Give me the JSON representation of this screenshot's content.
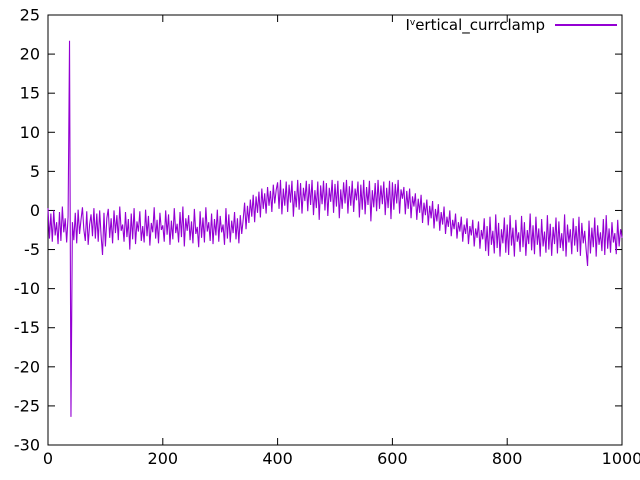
{
  "window": {
    "background": "#ffffff",
    "border_color": "#000000"
  },
  "legend": {
    "prefix": "I",
    "superscript": "v",
    "rest": "ertical_currclamp",
    "sample_color": "#9400d3"
  },
  "chart_data": {
    "type": "line",
    "title": "",
    "xlabel": "",
    "ylabel": "",
    "xlim": [
      0,
      1000
    ],
    "ylim": [
      -30,
      25
    ],
    "xticks": [
      0,
      200,
      400,
      600,
      800,
      1000
    ],
    "yticks": [
      25,
      20,
      15,
      10,
      5,
      0,
      -5,
      -10,
      -15,
      -20,
      -25,
      -30
    ],
    "grid": false,
    "legend_position": "top-right-inside",
    "axis_color": "#000000",
    "series": [
      {
        "name": "Vertical_currclamp",
        "color": "#9400d3",
        "x_start": 0,
        "x_step": 2.5,
        "values": [
          0.3,
          -3.6,
          -0.4,
          -4.0,
          0.0,
          -3.2,
          -1.5,
          -4.3,
          -0.2,
          -3.9,
          0.5,
          -2.8,
          -1.0,
          -4.1,
          -0.8,
          21.7,
          -26.4,
          -1.5,
          -3.8,
          -0.3,
          -4.2,
          0.1,
          -3.0,
          -1.2,
          0.4,
          -2.5,
          -3.9,
          -0.1,
          -4.4,
          -1.8,
          -0.5,
          -3.3,
          0.3,
          -3.6,
          -0.4,
          -4.0,
          0.0,
          -3.2,
          -5.7,
          -0.3,
          -4.6,
          -1.0,
          0.2,
          -3.5,
          -1.0,
          -4.2,
          0.0,
          -2.9,
          -0.6,
          -3.8,
          0.5,
          -2.6,
          -1.8,
          -4.0,
          -0.2,
          -3.4,
          -1.1,
          -5.0,
          -0.4,
          -3.7,
          0.3,
          -4.3,
          -1.4,
          -2.7,
          -0.1,
          -3.9,
          -2.0,
          -4.1,
          0.1,
          -3.3,
          -0.7,
          -4.5,
          -1.6,
          -2.8,
          0.4,
          -3.6,
          -1.2,
          -4.2,
          -0.3,
          -2.5,
          -1.9,
          -4.0,
          0.0,
          -3.1,
          -0.5,
          -4.4,
          -1.3,
          -3.7,
          0.3,
          -2.9,
          -1.7,
          -4.1,
          -0.2,
          -3.4,
          0.5,
          -4.6,
          -1.0,
          -2.6,
          -0.6,
          -3.8,
          -1.4,
          -4.2,
          0.2,
          -3.0,
          -2.1,
          -4.7,
          -0.1,
          -3.5,
          -0.9,
          -4.1,
          0.4,
          -2.7,
          -1.5,
          -3.9,
          -0.4,
          -4.3,
          -1.1,
          -3.2,
          0.1,
          -4.0,
          -0.7,
          -2.8,
          -1.8,
          -4.4,
          0.3,
          -3.6,
          -0.5,
          -4.1,
          -1.3,
          -2.9,
          -0.2,
          -3.7,
          -1.0,
          -4.2,
          -0.6,
          -3.0,
          -1.2,
          1.0,
          -2.4,
          0.6,
          -1.6,
          1.4,
          -0.8,
          2.0,
          -1.5,
          1.8,
          -0.3,
          2.4,
          -0.9,
          2.8,
          0.2,
          2.2,
          -0.4,
          3.0,
          0.6,
          2.5,
          -0.2,
          3.3,
          0.9,
          2.6,
          3.6,
          0.2,
          3.9,
          -0.5,
          2.8,
          0.6,
          3.7,
          -0.2,
          3.3,
          1.0,
          3.8,
          -0.8,
          2.5,
          0.4,
          3.9,
          0.1,
          3.5,
          -0.4,
          2.9,
          1.2,
          3.8,
          -0.1,
          3.4,
          0.7,
          3.9,
          -0.6,
          2.6,
          0.3,
          3.7,
          -1.2,
          3.2,
          0.8,
          3.8,
          0.0,
          3.5,
          -0.7,
          2.9,
          1.1,
          3.9,
          -0.3,
          3.4,
          0.5,
          3.8,
          -1.0,
          2.7,
          0.2,
          3.6,
          0.9,
          3.9,
          -0.4,
          3.1,
          0.6,
          3.8,
          -0.2,
          2.8,
          1.3,
          3.7,
          -0.9,
          3.3,
          0.1,
          3.9,
          -0.5,
          3.0,
          0.7,
          3.8,
          -1.4,
          2.6,
          0.4,
          3.5,
          -0.1,
          3.9,
          0.2,
          3.2,
          0.8,
          3.7,
          -0.6,
          2.9,
          0.3,
          3.8,
          -1.1,
          3.6,
          0.1,
          3.4,
          0.9,
          3.9,
          -0.4,
          2.7,
          1.5,
          3.0,
          -0.5,
          2.5,
          0.2,
          2.8,
          -1.0,
          1.8,
          0.5,
          2.2,
          -1.2,
          1.5,
          -0.3,
          2.0,
          -1.6,
          1.0,
          -0.6,
          1.4,
          -1.9,
          0.6,
          -1.0,
          1.2,
          -2.3,
          0.2,
          -1.4,
          0.8,
          -2.6,
          -0.2,
          -1.8,
          0.5,
          -3.0,
          -0.8,
          -2.1,
          0.0,
          -3.3,
          -1.2,
          -2.4,
          -0.4,
          -3.6,
          -1.5,
          -2.7,
          -0.8,
          -4.0,
          -1.8,
          -3.0,
          -1.0,
          -4.3,
          -2.0,
          -3.2,
          -1.2,
          -4.6,
          -2.3,
          -3.5,
          -1.4,
          -4.9,
          -2.5,
          -3.7,
          -1.0,
          -5.2,
          -2.0,
          -5.8,
          -0.8,
          -4.4,
          -2.6,
          -5.5,
          -0.5,
          -4.8,
          -1.6,
          -5.9,
          -2.4,
          -4.2,
          -0.9,
          -5.4,
          -1.8,
          -5.7,
          -0.6,
          -4.5,
          -2.2,
          -5.9,
          -1.2,
          -4.0,
          -2.8,
          -5.3,
          -0.7,
          -4.7,
          -1.5,
          -5.8,
          -2.5,
          -4.3,
          -0.4,
          -5.1,
          -1.9,
          -5.6,
          -0.8,
          -4.4,
          -2.3,
          -5.9,
          -1.1,
          -4.6,
          -2.7,
          -5.4,
          -0.6,
          -5.0,
          -1.7,
          -5.8,
          -2.1,
          -4.3,
          -0.9,
          -5.5,
          -1.4,
          -4.8,
          -2.9,
          -5.2,
          -0.5,
          -5.9,
          -1.8,
          -4.1,
          -2.4,
          -5.6,
          -1.0,
          -4.5,
          -2.0,
          -5.3,
          -0.8,
          -5.8,
          -1.6,
          -4.2,
          -2.6,
          -5.0,
          -7.1,
          -1.3,
          -5.5,
          -2.2,
          -4.7,
          -0.9,
          -5.9,
          -1.9,
          -4.4,
          -2.8,
          -5.2,
          -1.1,
          -5.7,
          -0.6,
          -4.9,
          -2.3,
          -5.4,
          -1.5,
          -4.1,
          -2.9,
          -5.6,
          -1.2,
          -4.6,
          -2.4,
          -3.5
        ]
      }
    ]
  }
}
